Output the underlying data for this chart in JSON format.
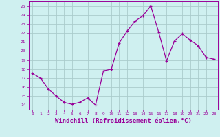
{
  "x": [
    0,
    1,
    2,
    3,
    4,
    5,
    6,
    7,
    8,
    9,
    10,
    11,
    12,
    13,
    14,
    15,
    16,
    17,
    18,
    19,
    20,
    21,
    22,
    23
  ],
  "y": [
    17.5,
    17.0,
    15.8,
    15.0,
    14.3,
    14.1,
    14.3,
    14.8,
    14.0,
    17.8,
    18.0,
    20.9,
    22.2,
    23.3,
    23.9,
    25.0,
    22.1,
    18.9,
    21.1,
    21.9,
    21.2,
    20.6,
    19.3,
    19.1
  ],
  "line_color": "#990099",
  "marker": "+",
  "marker_size": 3,
  "line_width": 0.9,
  "xlabel": "Windchill (Refroidissement éolien,°C)",
  "xlabel_fontsize": 6.5,
  "ylabel_ticks": [
    14,
    15,
    16,
    17,
    18,
    19,
    20,
    21,
    22,
    23,
    24,
    25
  ],
  "xtick_labels": [
    "0",
    "1",
    "2",
    "3",
    "4",
    "5",
    "6",
    "7",
    "8",
    "9",
    "10",
    "11",
    "12",
    "13",
    "14",
    "15",
    "16",
    "17",
    "18",
    "19",
    "20",
    "21",
    "22",
    "23"
  ],
  "ylim": [
    13.5,
    25.5
  ],
  "xlim": [
    -0.5,
    23.5
  ],
  "background_color": "#cff0f0",
  "grid_color": "#aacccc",
  "tick_color": "#990099",
  "label_color": "#990099"
}
